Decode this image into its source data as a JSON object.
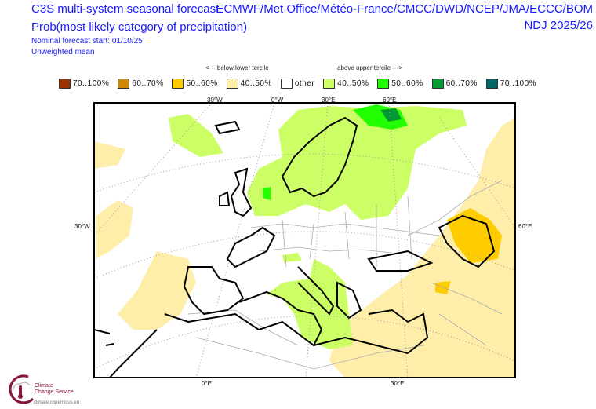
{
  "header": {
    "title_line1": "C3S multi-system seasonal forecast",
    "title_line2": "Prob(most likely category of precipitation)",
    "forecast_start": "Nominal forecast start: 01/10/25",
    "mean_type": "Unweighted mean",
    "systems": "ECMWF/Met Office/Météo-France/CMCC/DWD/NCEP/JMA/ECCC/BOM",
    "period": "NDJ 2025/26"
  },
  "legend": {
    "below_label": "<--- below lower tercile",
    "above_label": "above upper tercile --->",
    "items": [
      {
        "label": "70..100%",
        "color": "#993300"
      },
      {
        "label": "60..70%",
        "color": "#cc8800"
      },
      {
        "label": "50..60%",
        "color": "#ffcc00"
      },
      {
        "label": "40..50%",
        "color": "#ffeeaa"
      },
      {
        "label": "other",
        "color": "#ffffff"
      },
      {
        "label": "40..50%",
        "color": "#ccff66"
      },
      {
        "label": "50..60%",
        "color": "#22ff00"
      },
      {
        "label": "60..70%",
        "color": "#009933"
      },
      {
        "label": "70..100%",
        "color": "#006666"
      }
    ]
  },
  "axes": {
    "top": [
      "30°W",
      "0°W",
      "30°E",
      "60°E"
    ],
    "left": "30°W",
    "right": "60°E",
    "bottom": [
      "0°E",
      "30°E"
    ]
  },
  "logo": {
    "name_line1": "Climate",
    "name_line2": "Change Service",
    "url": "climate.copernicus.eu"
  }
}
